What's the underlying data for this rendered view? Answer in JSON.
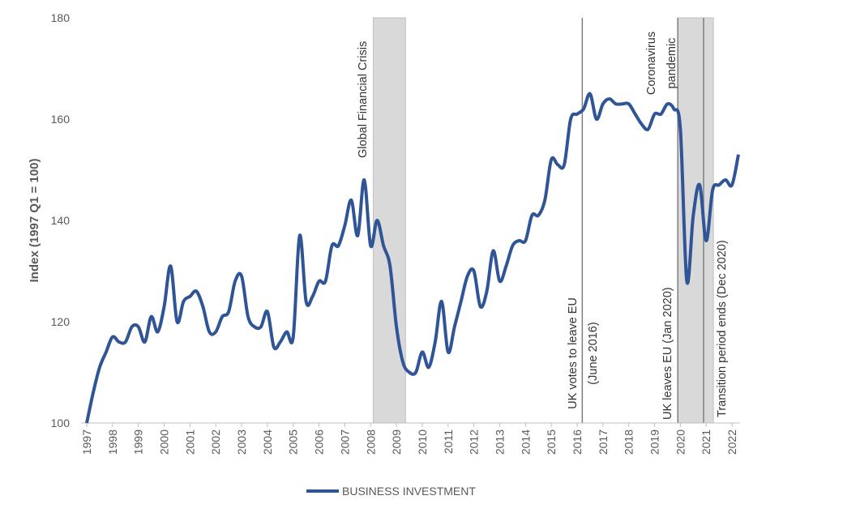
{
  "chart_data": {
    "type": "line",
    "y_label": "Index (1997 Q1 = 100)",
    "x": [
      1997,
      1997.25,
      1997.5,
      1997.75,
      1998,
      1998.25,
      1998.5,
      1998.75,
      1999,
      1999.25,
      1999.5,
      1999.75,
      2000,
      2000.25,
      2000.5,
      2000.75,
      2001,
      2001.25,
      2001.5,
      2001.75,
      2002,
      2002.25,
      2002.5,
      2002.75,
      2003,
      2003.25,
      2003.5,
      2003.75,
      2004,
      2004.25,
      2004.5,
      2004.75,
      2005,
      2005.25,
      2005.5,
      2005.75,
      2006,
      2006.25,
      2006.5,
      2006.75,
      2007,
      2007.25,
      2007.5,
      2007.75,
      2008,
      2008.25,
      2008.5,
      2008.75,
      2009,
      2009.25,
      2009.5,
      2009.75,
      2010,
      2010.25,
      2010.5,
      2010.75,
      2011,
      2011.25,
      2011.5,
      2011.75,
      2012,
      2012.25,
      2012.5,
      2012.75,
      2013,
      2013.25,
      2013.5,
      2013.75,
      2014,
      2014.25,
      2014.5,
      2014.75,
      2015,
      2015.25,
      2015.5,
      2015.75,
      2016,
      2016.25,
      2016.5,
      2016.75,
      2017,
      2017.25,
      2017.5,
      2017.75,
      2018,
      2018.25,
      2018.5,
      2018.75,
      2019,
      2019.25,
      2019.5,
      2019.75,
      2020,
      2020.25,
      2020.5,
      2020.75,
      2021,
      2021.25,
      2021.5,
      2021.75,
      2022,
      2022.25
    ],
    "series": [
      {
        "name": "BUSINESS INVESTMENT",
        "color": "#2f5597",
        "values": [
          100,
          106,
          111,
          114,
          117,
          116,
          116,
          119,
          119,
          116,
          121,
          118,
          123,
          131,
          120,
          124,
          125,
          126,
          123,
          118,
          118,
          121,
          122,
          128,
          129,
          121,
          119,
          119,
          122,
          115,
          116,
          118,
          117,
          137,
          124,
          125,
          128,
          128,
          135,
          135,
          139,
          144,
          137,
          148,
          135,
          140,
          135,
          131,
          119,
          112,
          110,
          110,
          114,
          111,
          116,
          124,
          114,
          119,
          124,
          129,
          130,
          123,
          126,
          134,
          128,
          131,
          135,
          136,
          136,
          141,
          141,
          144,
          152,
          151,
          151,
          160,
          161,
          162,
          165,
          160,
          163,
          164,
          163,
          163,
          163,
          161,
          159,
          158,
          161,
          161,
          163,
          162,
          158,
          128,
          141,
          147,
          136,
          146,
          147,
          148,
          147,
          153
        ]
      }
    ],
    "xlim": [
      1997,
      2022.25
    ],
    "xticks": [
      1997,
      1998,
      1999,
      2000,
      2001,
      2002,
      2003,
      2004,
      2005,
      2006,
      2007,
      2008,
      2009,
      2010,
      2011,
      2012,
      2013,
      2014,
      2015,
      2016,
      2017,
      2018,
      2019,
      2020,
      2021,
      2022
    ],
    "ylim": [
      100,
      180
    ],
    "yticks": [
      100,
      120,
      140,
      160,
      180
    ],
    "grid": false,
    "legend": "bottom",
    "shaded_periods": [
      [
        2008.1,
        2009.35
      ],
      [
        2019.9,
        2021.28
      ]
    ],
    "event_lines": [
      2016.2,
      2019.9,
      2020.9
    ],
    "annotations": [
      {
        "lines": [
          "Global Financial Crisis"
        ]
      },
      {
        "lines": [
          "UK votes to leave EU",
          "(June 2016)"
        ]
      },
      {
        "lines": [
          "Coronavirus",
          "pandemic"
        ]
      },
      {
        "lines": [
          "UK leaves EU (Jan 2020)"
        ]
      },
      {
        "lines": [
          "Transition period ends (Dec 2020)"
        ]
      }
    ]
  }
}
